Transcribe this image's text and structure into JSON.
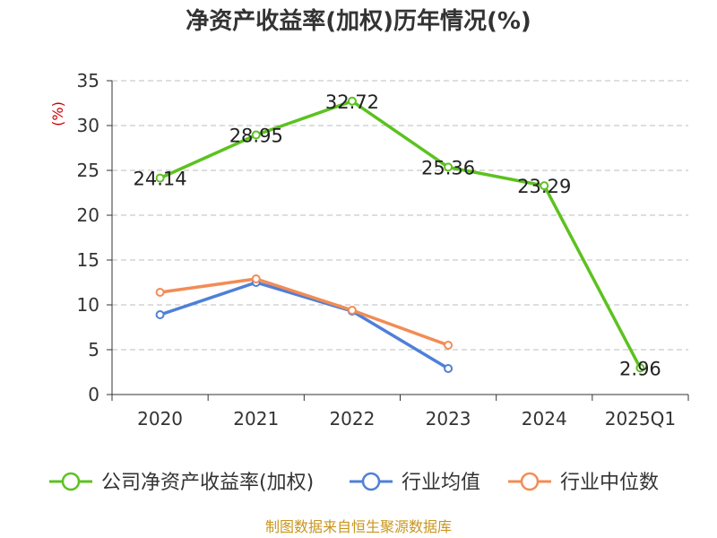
{
  "chart_data": {
    "type": "line",
    "title": "净资产收益率(加权)历年情况(%)",
    "ylabel": "(%)",
    "categories": [
      "2020",
      "2021",
      "2022",
      "2023",
      "2024",
      "2025Q1"
    ],
    "ylim": [
      0,
      35
    ],
    "yticks": [
      0,
      5,
      10,
      15,
      20,
      25,
      30,
      35
    ],
    "grid": true,
    "legend_position": "bottom",
    "series": [
      {
        "name": "公司净资产收益率(加权)",
        "color": "#5cc21f",
        "values": [
          24.14,
          28.95,
          32.72,
          25.36,
          23.29,
          2.96
        ],
        "labels": [
          "24.14",
          "28.95",
          "32.72",
          "25.36",
          "23.29",
          "2.96"
        ]
      },
      {
        "name": "行业均值",
        "color": "#4f7fd8",
        "values": [
          8.9,
          12.5,
          9.3,
          2.9,
          null,
          null
        ]
      },
      {
        "name": "行业中位数",
        "color": "#f28c55",
        "values": [
          11.4,
          12.9,
          9.4,
          5.5,
          null,
          null
        ]
      }
    ]
  },
  "footer": "制图数据来自恒生聚源数据库"
}
